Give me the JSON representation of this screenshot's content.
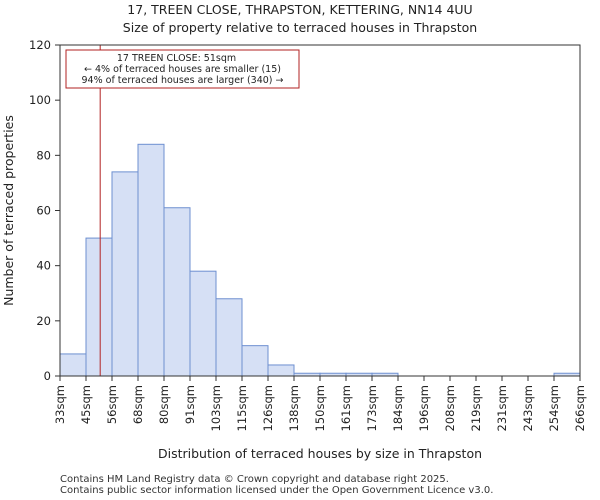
{
  "chart_data": {
    "type": "histogram",
    "title": "17, TREEN CLOSE, THRAPSTON, KETTERING, NN14 4UU",
    "subtitle": "Size of property relative to terraced houses in Thrapston",
    "xlabel": "Distribution of terraced houses by size in Thrapston",
    "ylabel": "Number of terraced properties",
    "ylim": [
      0,
      120
    ],
    "yticks": [
      0,
      20,
      40,
      60,
      80,
      100,
      120
    ],
    "bin_edges": [
      33,
      45,
      56,
      68,
      80,
      91,
      103,
      115,
      126,
      138,
      150,
      161,
      173,
      184,
      196,
      208,
      219,
      231,
      243,
      254,
      266
    ],
    "categories": [
      "33sqm",
      "45sqm",
      "56sqm",
      "68sqm",
      "80sqm",
      "91sqm",
      "103sqm",
      "115sqm",
      "126sqm",
      "138sqm",
      "150sqm",
      "161sqm",
      "173sqm",
      "184sqm",
      "196sqm",
      "208sqm",
      "219sqm",
      "231sqm",
      "243sqm",
      "254sqm",
      "266sqm"
    ],
    "values": [
      8,
      50,
      74,
      84,
      61,
      38,
      28,
      11,
      4,
      1,
      1,
      1,
      1,
      0,
      0,
      0,
      0,
      0,
      0,
      1
    ],
    "bar_color": "#d6e0f5",
    "bar_edge_color": "#6d8fd0",
    "marker": {
      "value": 51,
      "color": "#b22222",
      "label_lines": [
        "17 TREEN CLOSE: 51sqm",
        "← 4% of terraced houses are smaller (15)",
        "94% of terraced houses are larger (340) →"
      ]
    },
    "grid": false
  },
  "footer": {
    "line1": "Contains HM Land Registry data © Crown copyright and database right 2025.",
    "line2": "Contains public sector information licensed under the Open Government Licence v3.0."
  }
}
